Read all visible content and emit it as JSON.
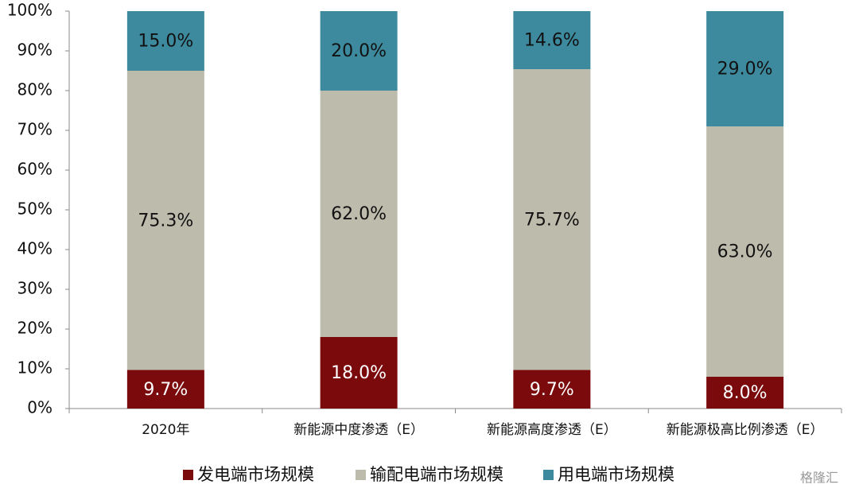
{
  "chart_data": {
    "type": "stacked_bar",
    "categories": [
      "2020年",
      "新能源中度渗透（E）",
      "新能源高度渗透（E）",
      "新能源极高比例渗透（E）"
    ],
    "series": [
      {
        "name": "发电端市场规模",
        "color": "#7a0a0c",
        "values": [
          9.7,
          18.0,
          9.7,
          8.0
        ],
        "value_labels": [
          "9.7%",
          "18.0%",
          "9.7%",
          "8.0%"
        ]
      },
      {
        "name": "输配电端市场规模",
        "color": "#bdbcac",
        "values": [
          75.3,
          62.0,
          75.7,
          63.0
        ],
        "value_labels": [
          "75.3%",
          "62.0%",
          "75.7%",
          "63.0%"
        ]
      },
      {
        "name": "用电端市场规模",
        "color": "#3d8a9e",
        "values": [
          15.0,
          20.0,
          14.6,
          29.0
        ],
        "value_labels": [
          "15.0%",
          "20.0%",
          "14.6%",
          "29.0%"
        ]
      }
    ],
    "ylim": [
      0,
      100
    ],
    "yticks": [
      {
        "value": 0,
        "label": "0%"
      },
      {
        "value": 10,
        "label": "10%"
      },
      {
        "value": 20,
        "label": "20%"
      },
      {
        "value": 30,
        "label": "30%"
      },
      {
        "value": 40,
        "label": "40%"
      },
      {
        "value": 50,
        "label": "50%"
      },
      {
        "value": 60,
        "label": "60%"
      },
      {
        "value": 70,
        "label": "70%"
      },
      {
        "value": 80,
        "label": "80%"
      },
      {
        "value": 90,
        "label": "90%"
      },
      {
        "value": 100,
        "label": "100%"
      }
    ],
    "legend": "bottom",
    "watermark": "格隆汇"
  }
}
